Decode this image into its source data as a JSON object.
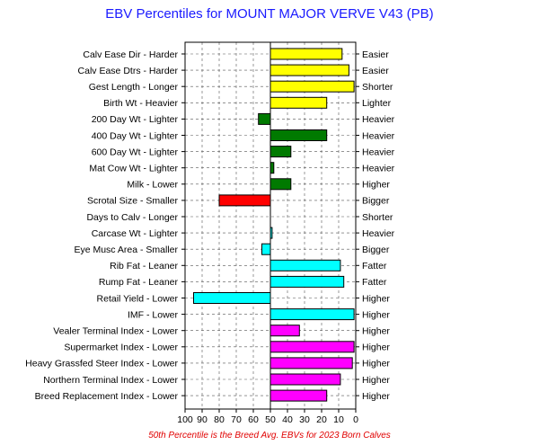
{
  "chart_data": {
    "type": "bar",
    "orientation": "horizontal",
    "title": "EBV Percentiles for MOUNT MAJOR VERVE V43 (PB)",
    "footnote": "50th Percentile is the Breed Avg. EBVs for 2023 Born Calves",
    "baseline": 50,
    "xlim": [
      100,
      0
    ],
    "x_ticks": [
      "100",
      "90",
      "80",
      "70",
      "60",
      "50",
      "40",
      "30",
      "20",
      "10",
      "0"
    ],
    "grid": true,
    "colors": {
      "yellow": "#ffff00",
      "green": "#007a00",
      "red": "#ff0000",
      "cyan": "#00ffff",
      "magenta": "#ff00ff"
    },
    "traits": [
      {
        "left_label": "Calv Ease Dir - Harder",
        "right_label": "Easier",
        "value": 8,
        "color": "yellow"
      },
      {
        "left_label": "Calv Ease Dtrs - Harder",
        "right_label": "Easier",
        "value": 4,
        "color": "yellow"
      },
      {
        "left_label": "Gest Length - Longer",
        "right_label": "Shorter",
        "value": 1,
        "color": "yellow"
      },
      {
        "left_label": "Birth Wt - Heavier",
        "right_label": "Lighter",
        "value": 17,
        "color": "yellow"
      },
      {
        "left_label": "200 Day Wt - Lighter",
        "right_label": "Heavier",
        "value": 57,
        "color": "green"
      },
      {
        "left_label": "400 Day Wt - Lighter",
        "right_label": "Heavier",
        "value": 17,
        "color": "green"
      },
      {
        "left_label": "600 Day Wt - Lighter",
        "right_label": "Heavier",
        "value": 38,
        "color": "green"
      },
      {
        "left_label": "Mat Cow Wt - Lighter",
        "right_label": "Heavier",
        "value": 48,
        "color": "green"
      },
      {
        "left_label": "Milk - Lower",
        "right_label": "Higher",
        "value": 38,
        "color": "green"
      },
      {
        "left_label": "Scrotal Size - Smaller",
        "right_label": "Bigger",
        "value": 80,
        "color": "red"
      },
      {
        "left_label": "Days to Calv - Longer",
        "right_label": "Shorter",
        "value": 50,
        "color": "yellow"
      },
      {
        "left_label": "Carcase Wt - Lighter",
        "right_label": "Heavier",
        "value": 49,
        "color": "cyan"
      },
      {
        "left_label": "Eye Musc Area - Smaller",
        "right_label": "Bigger",
        "value": 55,
        "color": "cyan"
      },
      {
        "left_label": "Rib Fat - Leaner",
        "right_label": "Fatter",
        "value": 9,
        "color": "cyan"
      },
      {
        "left_label": "Rump Fat - Leaner",
        "right_label": "Fatter",
        "value": 7,
        "color": "cyan"
      },
      {
        "left_label": "Retail Yield - Lower",
        "right_label": "Higher",
        "value": 95,
        "color": "cyan"
      },
      {
        "left_label": "IMF - Lower",
        "right_label": "Higher",
        "value": 1,
        "color": "cyan"
      },
      {
        "left_label": "Vealer Terminal Index - Lower",
        "right_label": "Higher",
        "value": 33,
        "color": "magenta"
      },
      {
        "left_label": "Supermarket Index - Lower",
        "right_label": "Higher",
        "value": 1,
        "color": "magenta"
      },
      {
        "left_label": "Heavy Grassfed Steer Index - Lower",
        "right_label": "Higher",
        "value": 2,
        "color": "magenta"
      },
      {
        "left_label": "Northern Terminal Index - Lower",
        "right_label": "Higher",
        "value": 9,
        "color": "magenta"
      },
      {
        "left_label": "Breed Replacement Index - Lower",
        "right_label": "Higher",
        "value": 17,
        "color": "magenta"
      }
    ]
  }
}
